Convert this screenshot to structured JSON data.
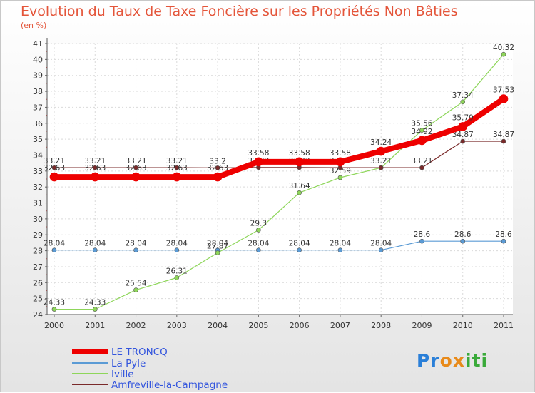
{
  "header": {
    "title": "Evolution du Taux de Taxe Foncière sur les Propriétés Non Bâties",
    "unit": "(en %)"
  },
  "logo": {
    "text": "Proxiti",
    "letters": [
      "P",
      "r",
      "o",
      "x",
      "i",
      "t",
      "i"
    ]
  },
  "chart_data": {
    "type": "line",
    "title": "Evolution du Taux de Taxe Foncière sur les Propriétés Non Bâties",
    "ylabel": "(en %)",
    "xlabel": "",
    "ylim": [
      24,
      41
    ],
    "yticks": [
      "24",
      "25",
      "26",
      "27",
      "28",
      "29",
      "30",
      "31",
      "32",
      "33",
      "34",
      "35",
      "36",
      "37",
      "38",
      "39",
      "40",
      "41"
    ],
    "categories": [
      "2000",
      "2001",
      "2002",
      "2003",
      "2004",
      "2005",
      "2006",
      "2007",
      "2008",
      "2009",
      "2010",
      "2011"
    ],
    "grid": true,
    "legend_position": "bottom-left",
    "series": [
      {
        "name": "La Pyle",
        "color": "#5b9bd5",
        "width": 1.2,
        "values": [
          28.04,
          28.04,
          28.04,
          28.04,
          28.04,
          28.04,
          28.04,
          28.04,
          28.04,
          28.6,
          28.6,
          28.6
        ],
        "labels": [
          "28.04",
          "28.04",
          "28.04",
          "28.04",
          "28.04",
          "28.04",
          "28.04",
          "28.04",
          "28.04",
          "28.6",
          "28.6",
          "28.6"
        ]
      },
      {
        "name": "Iville",
        "color": "#8ed65a",
        "width": 1.2,
        "values": [
          24.33,
          24.33,
          25.54,
          26.31,
          27.87,
          29.3,
          31.64,
          32.59,
          33.21,
          35.56,
          37.34,
          40.32
        ],
        "labels": [
          "24.33",
          "24.33",
          "25.54",
          "26.31",
          "27.87",
          "29.3",
          "31.64",
          "32.59",
          "33.21",
          "35.56",
          "37.34",
          "40.32"
        ]
      },
      {
        "name": "Amfreville-la-Campagne",
        "color": "#7a2a2a",
        "width": 1.2,
        "values": [
          33.21,
          33.21,
          33.21,
          33.21,
          33.2,
          33.22,
          33.22,
          33.21,
          33.21,
          33.21,
          34.87,
          34.87
        ],
        "labels": [
          "33.21",
          "33.21",
          "33.21",
          "33.21",
          "33.2",
          "33.22",
          "33.22",
          "33.21",
          "33.21",
          "33.21",
          "34.87",
          "34.87"
        ]
      },
      {
        "name": "LE TRONCQ",
        "color": "#ee0000",
        "width": 8,
        "values": [
          32.63,
          32.63,
          32.63,
          32.63,
          32.63,
          33.58,
          33.58,
          33.58,
          34.24,
          34.92,
          35.79,
          37.53
        ],
        "labels": [
          "32.63",
          "32.63",
          "32.63",
          "32.63",
          "32.63",
          "33.58",
          "33.58",
          "33.58",
          "34.24",
          "34.92",
          "35.79",
          "37.53"
        ]
      }
    ],
    "legend": [
      "LE TRONCQ",
      "La Pyle",
      "Iville",
      "Amfreville-la-Campagne"
    ]
  }
}
